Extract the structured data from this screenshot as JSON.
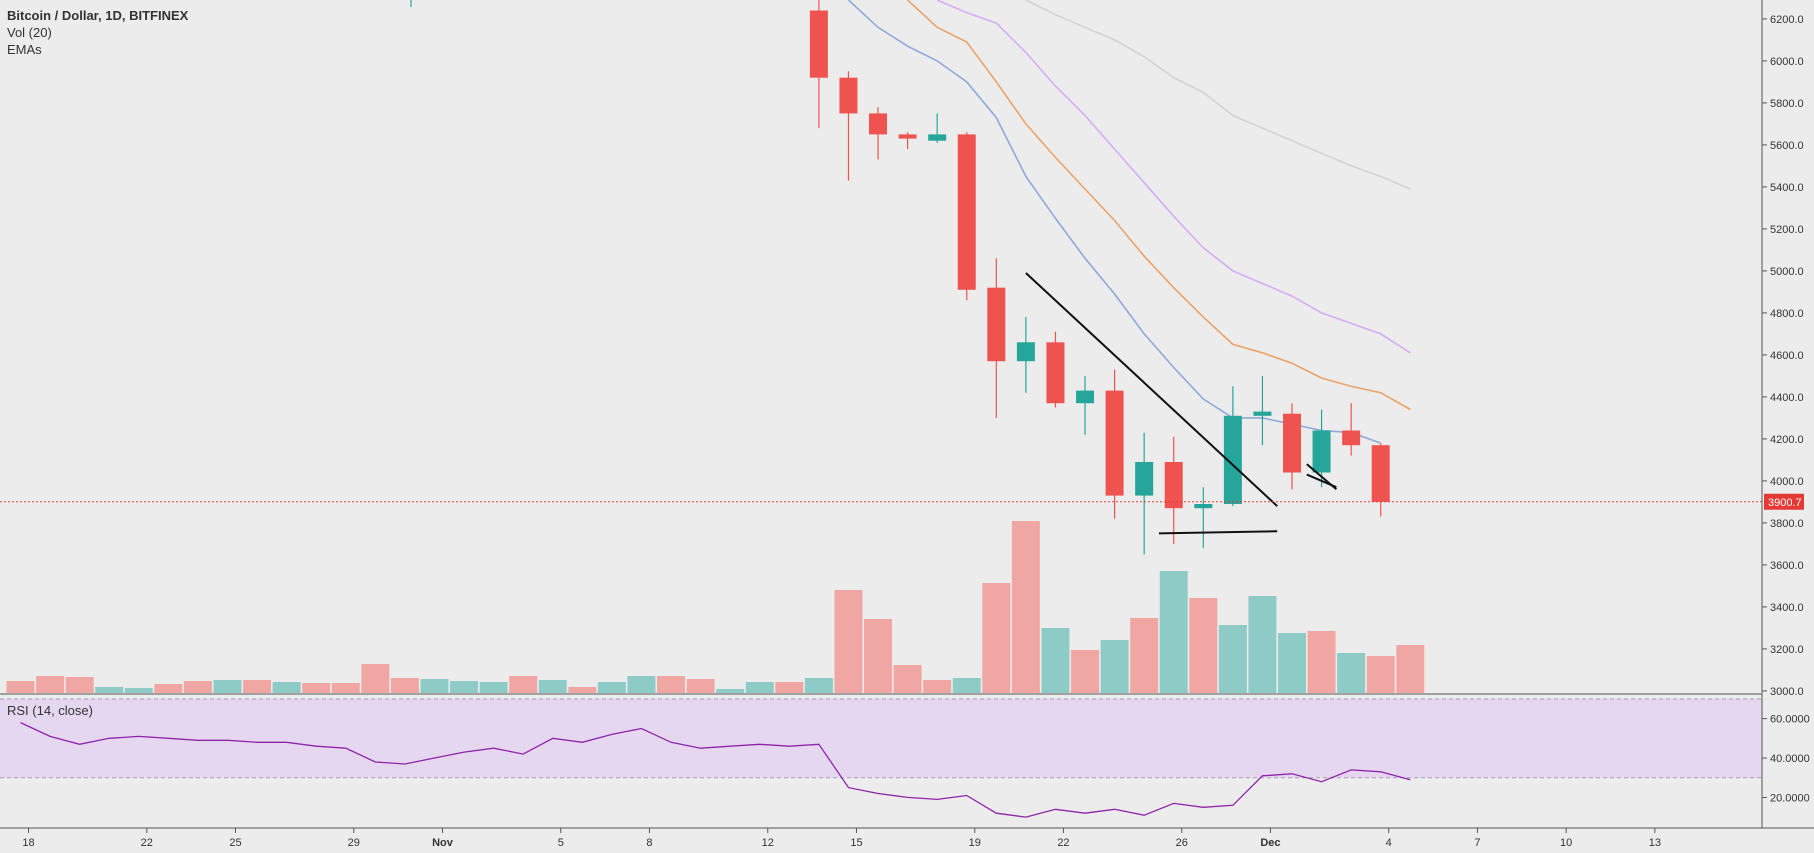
{
  "legend": {
    "title": "Bitcoin / Dollar, 1D, BITFINEX",
    "volume": "Vol (20)",
    "emas": "EMAs",
    "rsi": "RSI (14, close)"
  },
  "price_label": "3900.7",
  "colors": {
    "up": "#26a69a",
    "down": "#ef5350",
    "vol_up": "#8fcbc6",
    "vol_down": "#f0a7a4",
    "ema_fast": "#8ea9d8",
    "ema_mid": "#e9a36b",
    "ema_slow": "#d7acf6",
    "ema_long": "#d3d3d3",
    "rsi_line": "#8e24aa",
    "rsi_band": "#e6d7f0",
    "price_line": "#e53935"
  },
  "chart_data": {
    "type": "candlestick",
    "symbol": "Bitcoin / Dollar",
    "interval": "1D",
    "exchange": "BITFINEX",
    "last_price": 3900.7,
    "price_axis": {
      "ticks": [
        "3000.0",
        "3200.0",
        "3400.0",
        "3600.0",
        "3800.0",
        "4000.0",
        "4200.0",
        "4400.0",
        "4600.0",
        "4800.0",
        "5000.0",
        "5200.0",
        "5400.0",
        "5600.0",
        "5800.0",
        "6000.0",
        "6200.0"
      ],
      "range": [
        2990,
        6290
      ]
    },
    "rsi_axis": {
      "ticks": [
        "20.0000",
        "40.0000",
        "60.0000"
      ],
      "range": [
        5,
        72
      ],
      "band": [
        30,
        70
      ]
    },
    "x_axis": {
      "ticks": [
        "18",
        "22",
        "25",
        "29",
        "Nov",
        "5",
        "8",
        "12",
        "15",
        "19",
        "22",
        "26",
        "Dec",
        "4",
        "7",
        "10",
        "13"
      ],
      "tick_days": [
        0,
        4,
        7,
        11,
        14,
        18,
        21,
        25,
        28,
        32,
        35,
        39,
        42,
        46,
        49,
        52,
        55
      ]
    },
    "candles": [
      {
        "day": 27,
        "open": 6240,
        "high": 6300,
        "low": 5680,
        "close": 5920
      },
      {
        "day": 28,
        "open": 5920,
        "high": 5950,
        "low": 5430,
        "close": 5750
      },
      {
        "day": 29,
        "open": 5750,
        "high": 5780,
        "low": 5530,
        "close": 5650
      },
      {
        "day": 30,
        "open": 5650,
        "high": 5660,
        "low": 5580,
        "close": 5630
      },
      {
        "day": 31,
        "open": 5620,
        "high": 5750,
        "low": 5610,
        "close": 5650
      },
      {
        "day": 32,
        "open": 5650,
        "high": 5660,
        "low": 4860,
        "close": 4910
      },
      {
        "day": 33,
        "open": 4920,
        "high": 5060,
        "low": 4300,
        "close": 4570
      },
      {
        "day": 34,
        "open": 4570,
        "high": 4780,
        "low": 4420,
        "close": 4660
      },
      {
        "day": 35,
        "open": 4660,
        "high": 4710,
        "low": 4350,
        "close": 4370
      },
      {
        "day": 36,
        "open": 4370,
        "high": 4500,
        "low": 4220,
        "close": 4430
      },
      {
        "day": 37,
        "open": 4430,
        "high": 4530,
        "low": 3820,
        "close": 3930
      },
      {
        "day": 38,
        "open": 3930,
        "high": 4230,
        "low": 3650,
        "close": 4090
      },
      {
        "day": 39,
        "open": 4090,
        "high": 4210,
        "low": 3700,
        "close": 3870
      },
      {
        "day": 40,
        "open": 3870,
        "high": 3970,
        "low": 3680,
        "close": 3890
      },
      {
        "day": 41,
        "open": 3890,
        "high": 4450,
        "low": 3880,
        "close": 4310
      },
      {
        "day": 42,
        "open": 4310,
        "high": 4500,
        "low": 4170,
        "close": 4330
      },
      {
        "day": 43,
        "open": 4320,
        "high": 4370,
        "low": 3960,
        "close": 4040
      },
      {
        "day": 44,
        "open": 4040,
        "high": 4340,
        "low": 3970,
        "close": 4240
      },
      {
        "day": 45,
        "open": 4240,
        "high": 4370,
        "low": 4120,
        "close": 4170
      },
      {
        "day": 46,
        "open": 4170,
        "high": 4180,
        "low": 3830,
        "close": 3900
      }
    ],
    "volume_bars": [
      {
        "day": 0,
        "dir": "down",
        "v": 12
      },
      {
        "day": 1,
        "dir": "down",
        "v": 17
      },
      {
        "day": 2,
        "dir": "down",
        "v": 16
      },
      {
        "day": 3,
        "dir": "up",
        "v": 6
      },
      {
        "day": 4,
        "dir": "up",
        "v": 5
      },
      {
        "day": 5,
        "dir": "down",
        "v": 9
      },
      {
        "day": 6,
        "dir": "down",
        "v": 12
      },
      {
        "day": 7,
        "dir": "up",
        "v": 13
      },
      {
        "day": 8,
        "dir": "down",
        "v": 13
      },
      {
        "day": 9,
        "dir": "up",
        "v": 11
      },
      {
        "day": 10,
        "dir": "down",
        "v": 10
      },
      {
        "day": 11,
        "dir": "down",
        "v": 10
      },
      {
        "day": 12,
        "dir": "down",
        "v": 29
      },
      {
        "day": 13,
        "dir": "down",
        "v": 15
      },
      {
        "day": 14,
        "dir": "up",
        "v": 14
      },
      {
        "day": 15,
        "dir": "up",
        "v": 12
      },
      {
        "day": 16,
        "dir": "up",
        "v": 11
      },
      {
        "day": 17,
        "dir": "down",
        "v": 17
      },
      {
        "day": 18,
        "dir": "up",
        "v": 13
      },
      {
        "day": 19,
        "dir": "down",
        "v": 6
      },
      {
        "day": 20,
        "dir": "up",
        "v": 11
      },
      {
        "day": 21,
        "dir": "up",
        "v": 17
      },
      {
        "day": 22,
        "dir": "down",
        "v": 17
      },
      {
        "day": 23,
        "dir": "down",
        "v": 14
      },
      {
        "day": 24,
        "dir": "up",
        "v": 4
      },
      {
        "day": 25,
        "dir": "up",
        "v": 11
      },
      {
        "day": 26,
        "dir": "down",
        "v": 11
      },
      {
        "day": 27,
        "dir": "up",
        "v": 15
      },
      {
        "day": 28,
        "dir": "down",
        "v": 103
      },
      {
        "day": 29,
        "dir": "down",
        "v": 74
      },
      {
        "day": 30,
        "dir": "down",
        "v": 28
      },
      {
        "day": 31,
        "dir": "down",
        "v": 13
      },
      {
        "day": 32,
        "dir": "up",
        "v": 15
      },
      {
        "day": 33,
        "dir": "down",
        "v": 110
      },
      {
        "day": 34,
        "dir": "down",
        "v": 172
      },
      {
        "day": 35,
        "dir": "up",
        "v": 65
      },
      {
        "day": 36,
        "dir": "down",
        "v": 43
      },
      {
        "day": 37,
        "dir": "up",
        "v": 53
      },
      {
        "day": 38,
        "dir": "down",
        "v": 75
      },
      {
        "day": 39,
        "dir": "up",
        "v": 122
      },
      {
        "day": 40,
        "dir": "down",
        "v": 95
      },
      {
        "day": 41,
        "dir": "up",
        "v": 68
      },
      {
        "day": 42,
        "dir": "up",
        "v": 97
      },
      {
        "day": 43,
        "dir": "up",
        "v": 60
      },
      {
        "day": 44,
        "dir": "down",
        "v": 62
      },
      {
        "day": 45,
        "dir": "up",
        "v": 40
      },
      {
        "day": 46,
        "dir": "down",
        "v": 37
      },
      {
        "day": 47,
        "dir": "down",
        "v": 48
      }
    ],
    "emas": [
      {
        "name": "ema_fast",
        "points": [
          [
            28,
            6290
          ],
          [
            29,
            6160
          ],
          [
            30,
            6070
          ],
          [
            31,
            6000
          ],
          [
            32,
            5900
          ],
          [
            33,
            5730
          ],
          [
            34,
            5450
          ],
          [
            35,
            5250
          ],
          [
            36,
            5060
          ],
          [
            37,
            4890
          ],
          [
            38,
            4700
          ],
          [
            39,
            4540
          ],
          [
            40,
            4390
          ],
          [
            41,
            4300
          ],
          [
            42,
            4300
          ],
          [
            43,
            4270
          ],
          [
            44,
            4240
          ],
          [
            45,
            4230
          ],
          [
            46,
            4180
          ]
        ]
      },
      {
        "name": "ema_mid",
        "points": [
          [
            30,
            6290
          ],
          [
            31,
            6160
          ],
          [
            32,
            6090
          ],
          [
            33,
            5900
          ],
          [
            34,
            5700
          ],
          [
            35,
            5540
          ],
          [
            36,
            5390
          ],
          [
            37,
            5240
          ],
          [
            38,
            5070
          ],
          [
            39,
            4920
          ],
          [
            40,
            4780
          ],
          [
            41,
            4650
          ],
          [
            42,
            4610
          ],
          [
            43,
            4560
          ],
          [
            44,
            4490
          ],
          [
            45,
            4450
          ],
          [
            46,
            4420
          ],
          [
            47,
            4340
          ]
        ]
      },
      {
        "name": "ema_slow",
        "points": [
          [
            31,
            6290
          ],
          [
            32,
            6230
          ],
          [
            33,
            6180
          ],
          [
            34,
            6040
          ],
          [
            35,
            5880
          ],
          [
            36,
            5740
          ],
          [
            37,
            5580
          ],
          [
            38,
            5420
          ],
          [
            39,
            5260
          ],
          [
            40,
            5110
          ],
          [
            41,
            5000
          ],
          [
            42,
            4940
          ],
          [
            43,
            4880
          ],
          [
            44,
            4800
          ],
          [
            45,
            4750
          ],
          [
            46,
            4700
          ],
          [
            47,
            4610
          ]
        ]
      },
      {
        "name": "ema_long",
        "points": [
          [
            34,
            6290
          ],
          [
            35,
            6220
          ],
          [
            36,
            6160
          ],
          [
            37,
            6100
          ],
          [
            38,
            6020
          ],
          [
            39,
            5920
          ],
          [
            40,
            5850
          ],
          [
            41,
            5740
          ],
          [
            42,
            5680
          ],
          [
            43,
            5620
          ],
          [
            44,
            5560
          ],
          [
            45,
            5500
          ],
          [
            46,
            5450
          ],
          [
            47,
            5390
          ]
        ]
      }
    ],
    "trendlines": [
      {
        "from": [
          34,
          4990
        ],
        "to": [
          42.5,
          3880
        ]
      },
      {
        "from": [
          38.5,
          3750
        ],
        "to": [
          42.5,
          3760
        ]
      },
      {
        "from": [
          43.5,
          4030
        ],
        "to": [
          44.5,
          3970
        ]
      },
      {
        "from": [
          43.5,
          4080
        ],
        "to": [
          44.5,
          3960
        ]
      }
    ],
    "rsi": [
      [
        0,
        58
      ],
      [
        1,
        51
      ],
      [
        2,
        47
      ],
      [
        3,
        50
      ],
      [
        4,
        51
      ],
      [
        5,
        50
      ],
      [
        6,
        49
      ],
      [
        7,
        49
      ],
      [
        8,
        48
      ],
      [
        9,
        48
      ],
      [
        10,
        46
      ],
      [
        11,
        45
      ],
      [
        12,
        38
      ],
      [
        13,
        37
      ],
      [
        14,
        40
      ],
      [
        15,
        43
      ],
      [
        16,
        45
      ],
      [
        17,
        42
      ],
      [
        18,
        50
      ],
      [
        19,
        48
      ],
      [
        20,
        52
      ],
      [
        21,
        55
      ],
      [
        22,
        48
      ],
      [
        23,
        45
      ],
      [
        24,
        46
      ],
      [
        25,
        47
      ],
      [
        26,
        46
      ],
      [
        27,
        47
      ],
      [
        28,
        25
      ],
      [
        29,
        22
      ],
      [
        30,
        20
      ],
      [
        31,
        19
      ],
      [
        32,
        21
      ],
      [
        33,
        12
      ],
      [
        34,
        10
      ],
      [
        35,
        14
      ],
      [
        36,
        12
      ],
      [
        37,
        14
      ],
      [
        38,
        11
      ],
      [
        39,
        17
      ],
      [
        40,
        15
      ],
      [
        41,
        16
      ],
      [
        42,
        31
      ],
      [
        43,
        32
      ],
      [
        44,
        28
      ],
      [
        45,
        34
      ],
      [
        46,
        33
      ],
      [
        47,
        29
      ]
    ]
  }
}
